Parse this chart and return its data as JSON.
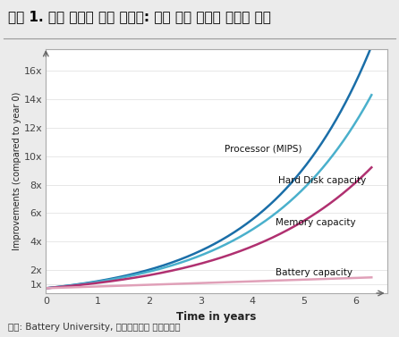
{
  "title": "그림 1. 기술 발전이 더딘 배터리: 양산 능력 확보가 어렵기 때문",
  "source": "자료: Battery University, 미래에셋대우 리서치센터",
  "xlabel": "Time in years",
  "ylabel": "Improvements (compared to year 0)",
  "xlim": [
    0,
    6.6
  ],
  "ylim": [
    0.4,
    17.5
  ],
  "yticks": [
    1,
    2,
    4,
    6,
    8,
    10,
    12,
    14,
    16
  ],
  "ytick_labels": [
    "1x",
    "2x",
    "4x",
    "6x",
    "8x",
    "10x",
    "12x",
    "14x",
    "16x"
  ],
  "xticks": [
    0,
    1,
    2,
    3,
    4,
    5,
    6
  ],
  "processor_color": "#1a6ea8",
  "hard_disk_color": "#4ab0cc",
  "memory_color": "#b03070",
  "battery_color": "#e0a0b8",
  "processor_label": "Processor (MIPS)",
  "hard_disk_label": "Hard Disk capacity",
  "memory_label": "Memory capacity",
  "battery_label": "Battery capacity",
  "title_fontsize": 11,
  "label_fontsize": 8.5,
  "tick_fontsize": 8,
  "source_fontsize": 7.5,
  "bg_color": "#ffffff",
  "outer_bg": "#ebebeb",
  "border_color": "#aaaaaa"
}
